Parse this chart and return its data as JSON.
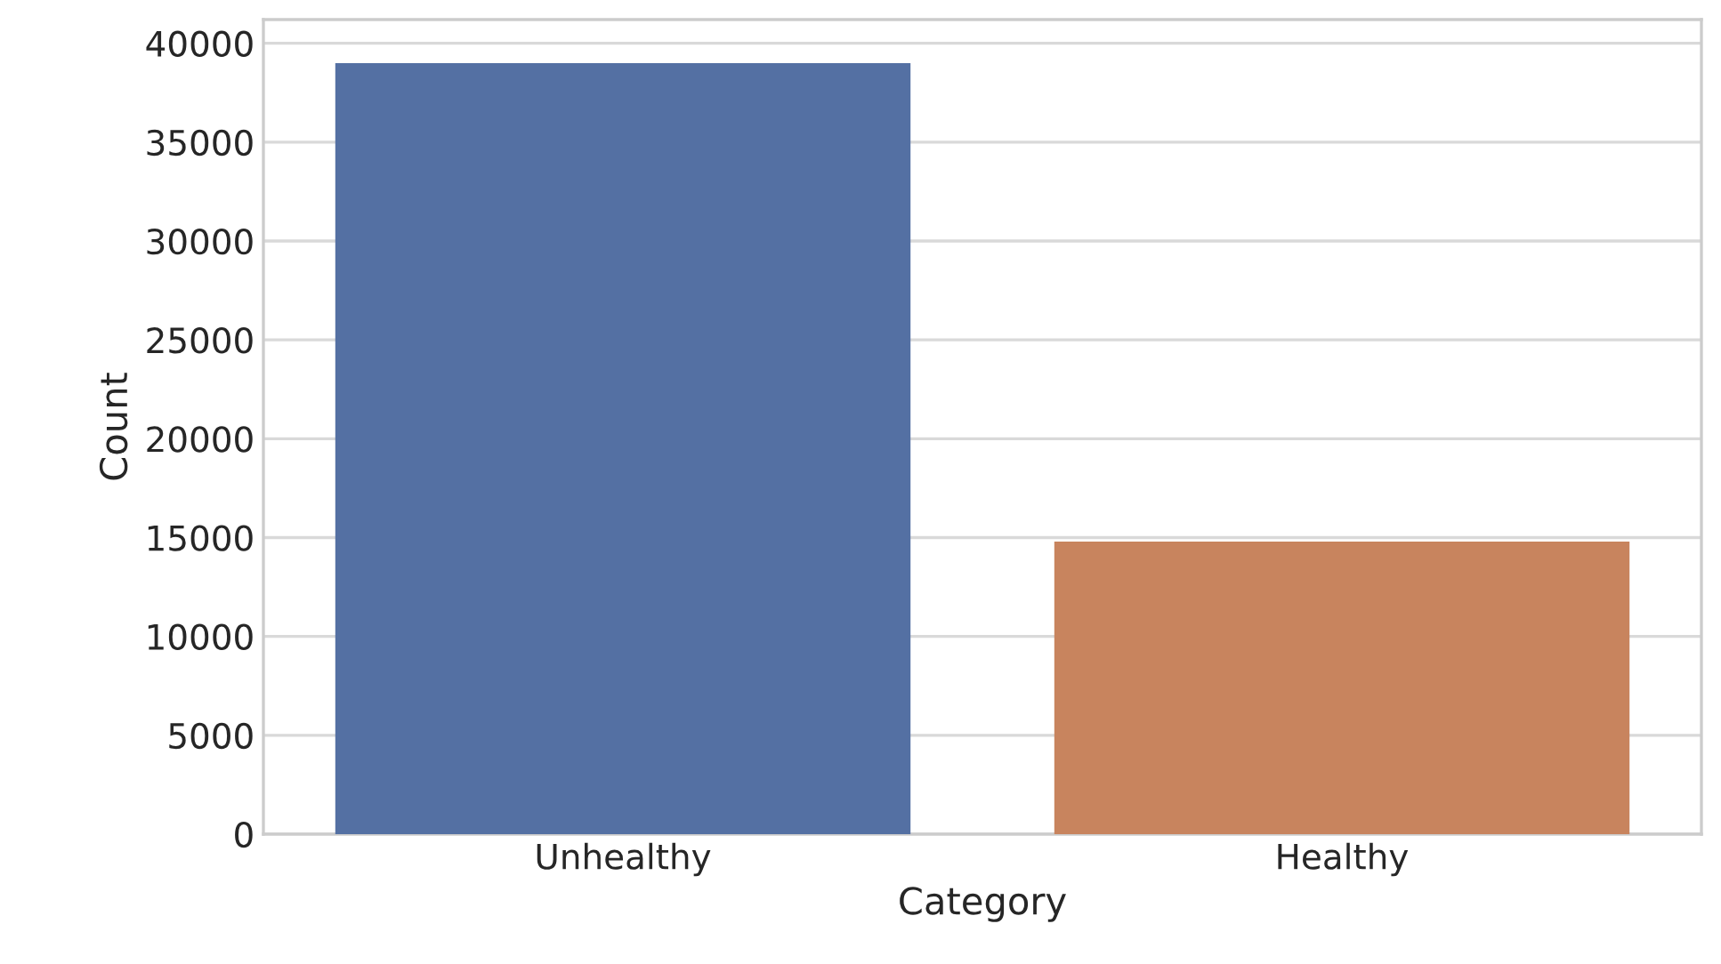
{
  "chart_data": {
    "type": "bar",
    "xlabel": "Category",
    "ylabel": "Count",
    "categories": [
      "Unhealthy",
      "Healthy"
    ],
    "values": [
      39000,
      14800
    ],
    "colors": [
      "#5470a3",
      "#c8845e"
    ],
    "ylim": [
      0,
      41200
    ],
    "yticks": [
      0,
      5000,
      10000,
      15000,
      20000,
      25000,
      30000,
      35000,
      40000
    ],
    "grid": "y"
  }
}
